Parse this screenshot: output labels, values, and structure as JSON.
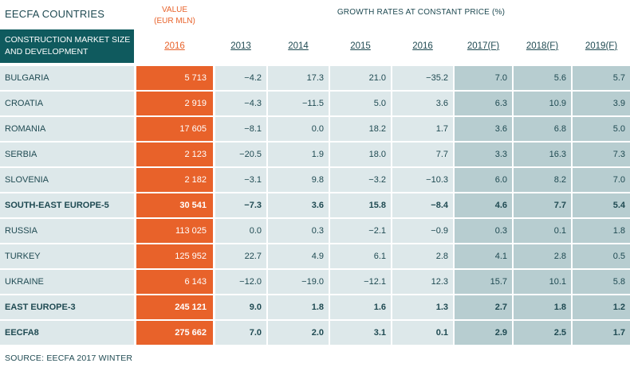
{
  "titles": {
    "countries": "EECFA COUNTRIES",
    "value_line1": "VALUE",
    "value_line2": "(EUR MLN)",
    "growth": "GROWTH RATES AT CONSTANT PRICE (%)"
  },
  "header": {
    "label_line1": "CONSTRUCTION MARKET SIZE",
    "label_line2": "AND DEVELOPMENT",
    "years": [
      "2016",
      "2013",
      "2014",
      "2015",
      "2016",
      "2017(F)",
      "2018(F)",
      "2019(F)"
    ]
  },
  "rows": [
    {
      "name": "BULGARIA",
      "value": "5 713",
      "g": [
        "-4.2",
        "17.3",
        "21.0",
        "-35.2",
        "7.0",
        "5.6",
        "5.7"
      ]
    },
    {
      "name": "CROATIA",
      "value": "2 919",
      "g": [
        "-4.3",
        "-11.5",
        "5.0",
        "3.6",
        "6.3",
        "10.9",
        "3.9"
      ]
    },
    {
      "name": "ROMANIA",
      "value": "17 605",
      "g": [
        "-8.1",
        "0.0",
        "18.2",
        "1.7",
        "3.6",
        "6.8",
        "5.0"
      ]
    },
    {
      "name": "SERBIA",
      "value": "2 123",
      "g": [
        "-20.5",
        "1.9",
        "18.0",
        "7.7",
        "3.3",
        "16.3",
        "7.3"
      ]
    },
    {
      "name": "SLOVENIA",
      "value": "2 182",
      "g": [
        "-3.1",
        "9.8",
        "-3.2",
        "-10.3",
        "6.0",
        "8.2",
        "7.0"
      ]
    },
    {
      "name": "SOUTH-EAST EUROPE-5",
      "value": "30 541",
      "g": [
        "-7.3",
        "3.6",
        "15.8",
        "-8.4",
        "4.6",
        "7.7",
        "5.4"
      ]
    },
    {
      "name": "RUSSIA",
      "value": "113 025",
      "g": [
        "0.0",
        "0.3",
        "-2.1",
        "-0.9",
        "0.3",
        "0.1",
        "1.8"
      ]
    },
    {
      "name": "TURKEY",
      "value": "125 952",
      "g": [
        "22.7",
        "4.9",
        "6.1",
        "2.8",
        "4.1",
        "2.8",
        "0.5"
      ]
    },
    {
      "name": "UKRAINE",
      "value": "6 143",
      "g": [
        "-12.0",
        "-19.0",
        "-12.1",
        "12.3",
        "15.7",
        "10.1",
        "5.8"
      ]
    },
    {
      "name": "EAST EUROPE-3",
      "value": "245 121",
      "g": [
        "9.0",
        "1.8",
        "1.6",
        "1.3",
        "2.7",
        "1.8",
        "1.2"
      ]
    },
    {
      "name": "EECFA8",
      "value": "275 662",
      "g": [
        "7.0",
        "2.0",
        "3.1",
        "0.1",
        "2.9",
        "2.5",
        "1.7"
      ]
    }
  ],
  "source": "SOURCE: EECFA 2017 WINTER",
  "colors": {
    "accent": "#e8622a",
    "header": "#0f5a5e",
    "row_bg": "#dde8ea",
    "forecast_bg": "#b7cdd0"
  }
}
